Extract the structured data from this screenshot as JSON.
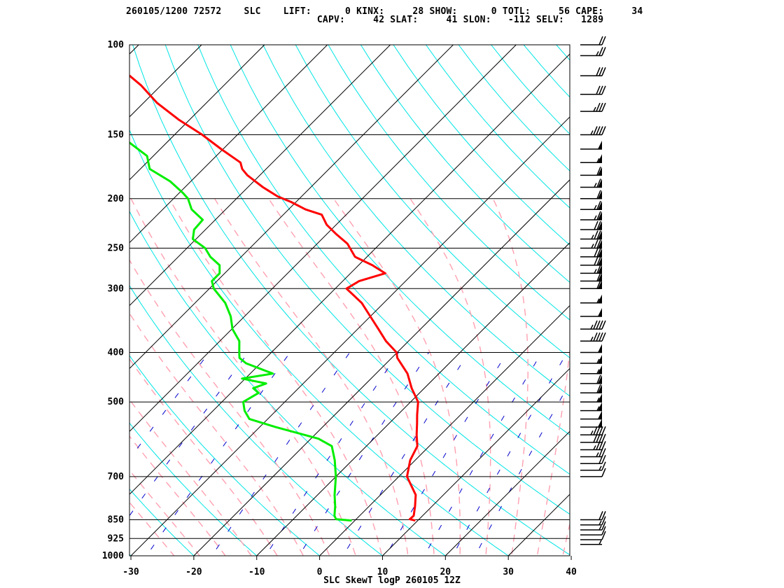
{
  "header": {
    "line1": "260105/1200 72572    SLC    LIFT:      0 KINX:     28 SHOW:      0 TOTL:     56 CAPE:     34",
    "line2": "                                  CAPV:     42 SLAT:     41 SLON:   -112 SELV:   1289"
  },
  "footer": {
    "caption": "SLC SkewT logP 260105 12Z"
  },
  "colors": {
    "temperature": "#ff0000",
    "dewpoint": "#00ee00",
    "isotherm": "#000000",
    "dry_adiabat": "#00e5e5",
    "moist_adiabat": "#ffa0b0",
    "mixing_ratio": "#0000cc",
    "wind_barb": "#000000"
  },
  "chart_data": {
    "type": "skewt-logp",
    "xlim": [
      -30,
      40
    ],
    "x_ticks": [
      -30,
      -20,
      -10,
      0,
      10,
      20,
      30,
      40
    ],
    "x_tick_labels": [
      "-30",
      "-20",
      "-10",
      "0",
      "10",
      "20",
      "30",
      "40"
    ],
    "pressure_range": [
      1000,
      100
    ],
    "pressure_levels": [
      100,
      150,
      200,
      250,
      300,
      400,
      500,
      700,
      850,
      925,
      1000
    ],
    "pressure_labels": [
      "100",
      "150",
      "200",
      "250",
      "300",
      "400",
      "500",
      "700",
      "850",
      "925",
      "1000"
    ],
    "y_scale": "log",
    "temperature": {
      "p": [
        853,
        848,
        835,
        800,
        760,
        700,
        650,
        610,
        580,
        550,
        530,
        500,
        470,
        440,
        410,
        400,
        380,
        360,
        340,
        320,
        300,
        290,
        280,
        270,
        260,
        245,
        235,
        225,
        215,
        210,
        203,
        198,
        190,
        180,
        175,
        170,
        160,
        150,
        140,
        130,
        120,
        115,
        110,
        105,
        100
      ],
      "t": [
        9.6,
        8.5,
        8.6,
        7.3,
        5.6,
        1.3,
        -0.8,
        -1.9,
        -3.8,
        -5.6,
        -6.9,
        -8.8,
        -12.0,
        -15.0,
        -19.1,
        -20.1,
        -23.6,
        -26.7,
        -30.0,
        -33.5,
        -38.2,
        -37.4,
        -34.5,
        -37.8,
        -41.9,
        -45.2,
        -48.4,
        -51.5,
        -53.9,
        -57.3,
        -60.8,
        -63.8,
        -67.6,
        -72.0,
        -73.8,
        -75.1,
        -80.3,
        -85.6,
        -91.8,
        -97.8,
        -103.2,
        -106.5,
        -110.5,
        -115.3,
        -119.5
      ]
    },
    "dewpoint": {
      "p": [
        853,
        848,
        835,
        800,
        760,
        700,
        650,
        610,
        590,
        560,
        540,
        520,
        500,
        480,
        470,
        460,
        450,
        440,
        420,
        410,
        400,
        380,
        360,
        340,
        320,
        300,
        290,
        280,
        270,
        260,
        250,
        240,
        230,
        220,
        210,
        200,
        195,
        185,
        175,
        165,
        150,
        140,
        130,
        125,
        120,
        118,
        112,
        105,
        100
      ],
      "t": [
        -0.5,
        -3.2,
        -4.0,
        -5.4,
        -7.3,
        -10.0,
        -12.8,
        -15.5,
        -18.8,
        -27.4,
        -32.9,
        -35.0,
        -36.6,
        -35.6,
        -37.2,
        -35.9,
        -40.5,
        -36.4,
        -42.3,
        -44.2,
        -45.1,
        -46.9,
        -49.9,
        -52.2,
        -55.2,
        -59.3,
        -60.8,
        -60.8,
        -62.1,
        -64.9,
        -67.1,
        -70.5,
        -71.8,
        -72.0,
        -75.4,
        -77.7,
        -79.4,
        -83.3,
        -88.5,
        -91.0,
        -98.8,
        -103.3,
        -108.7,
        -113.3,
        -117.1,
        -117.7,
        -121.0,
        -124.7,
        -128.3
      ]
    },
    "wind": {
      "p": [
        850,
        870,
        890,
        910,
        930,
        950,
        700,
        680,
        660,
        640,
        620,
        600,
        580,
        560,
        540,
        520,
        500,
        480,
        460,
        440,
        420,
        400,
        380,
        360,
        340,
        320,
        300,
        290,
        280,
        270,
        260,
        250,
        240,
        230,
        220,
        210,
        200,
        190,
        180,
        170,
        160,
        150,
        135,
        125,
        115,
        105,
        100
      ],
      "speed_kt": [
        20,
        15,
        15,
        10,
        10,
        5,
        10,
        15,
        20,
        25,
        35,
        40,
        45,
        50,
        50,
        55,
        55,
        60,
        60,
        55,
        55,
        50,
        45,
        45,
        50,
        55,
        60,
        60,
        65,
        70,
        70,
        75,
        75,
        70,
        65,
        65,
        60,
        65,
        60,
        55,
        50,
        45,
        35,
        30,
        30,
        25,
        20
      ]
    }
  }
}
